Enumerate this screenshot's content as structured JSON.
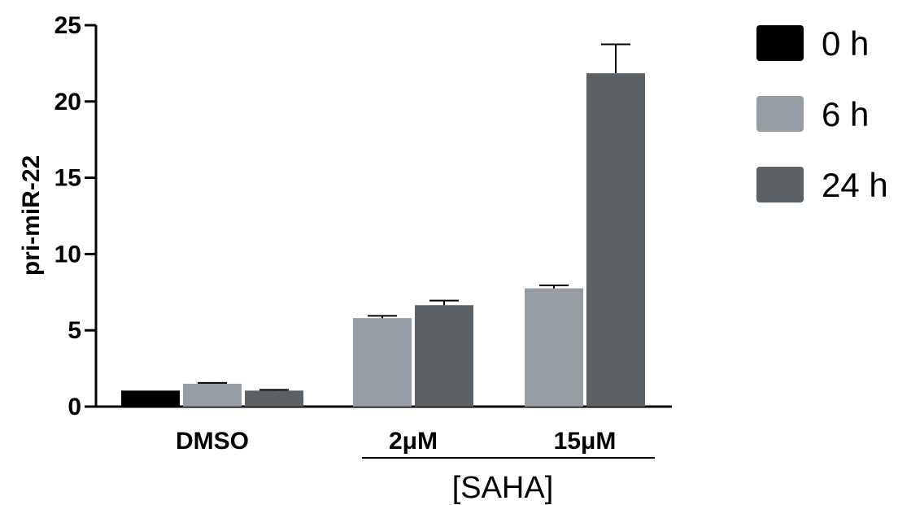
{
  "chart_data": {
    "type": "bar",
    "ylabel": "pri-miR-22",
    "xlabel": "",
    "ylim": [
      0,
      25
    ],
    "yticks": [
      "0",
      "5",
      "10",
      "15",
      "20",
      "25"
    ],
    "categories": [
      "DMSO",
      "2μM",
      "15μM"
    ],
    "group_bracket_label": "[SAHA]",
    "series": [
      {
        "name": "0 h",
        "color": "#000000",
        "values": [
          1.05,
          null,
          null
        ],
        "errors": [
          0,
          null,
          null
        ]
      },
      {
        "name": "6 h",
        "color": "#969ca3",
        "values": [
          1.5,
          5.8,
          7.75
        ],
        "errors": [
          0.05,
          0.15,
          0.2
        ]
      },
      {
        "name": "24 h",
        "color": "#5c6166",
        "values": [
          1.05,
          6.65,
          21.85
        ],
        "errors": [
          0.05,
          0.3,
          1.9
        ]
      }
    ],
    "legend_position": "right"
  }
}
